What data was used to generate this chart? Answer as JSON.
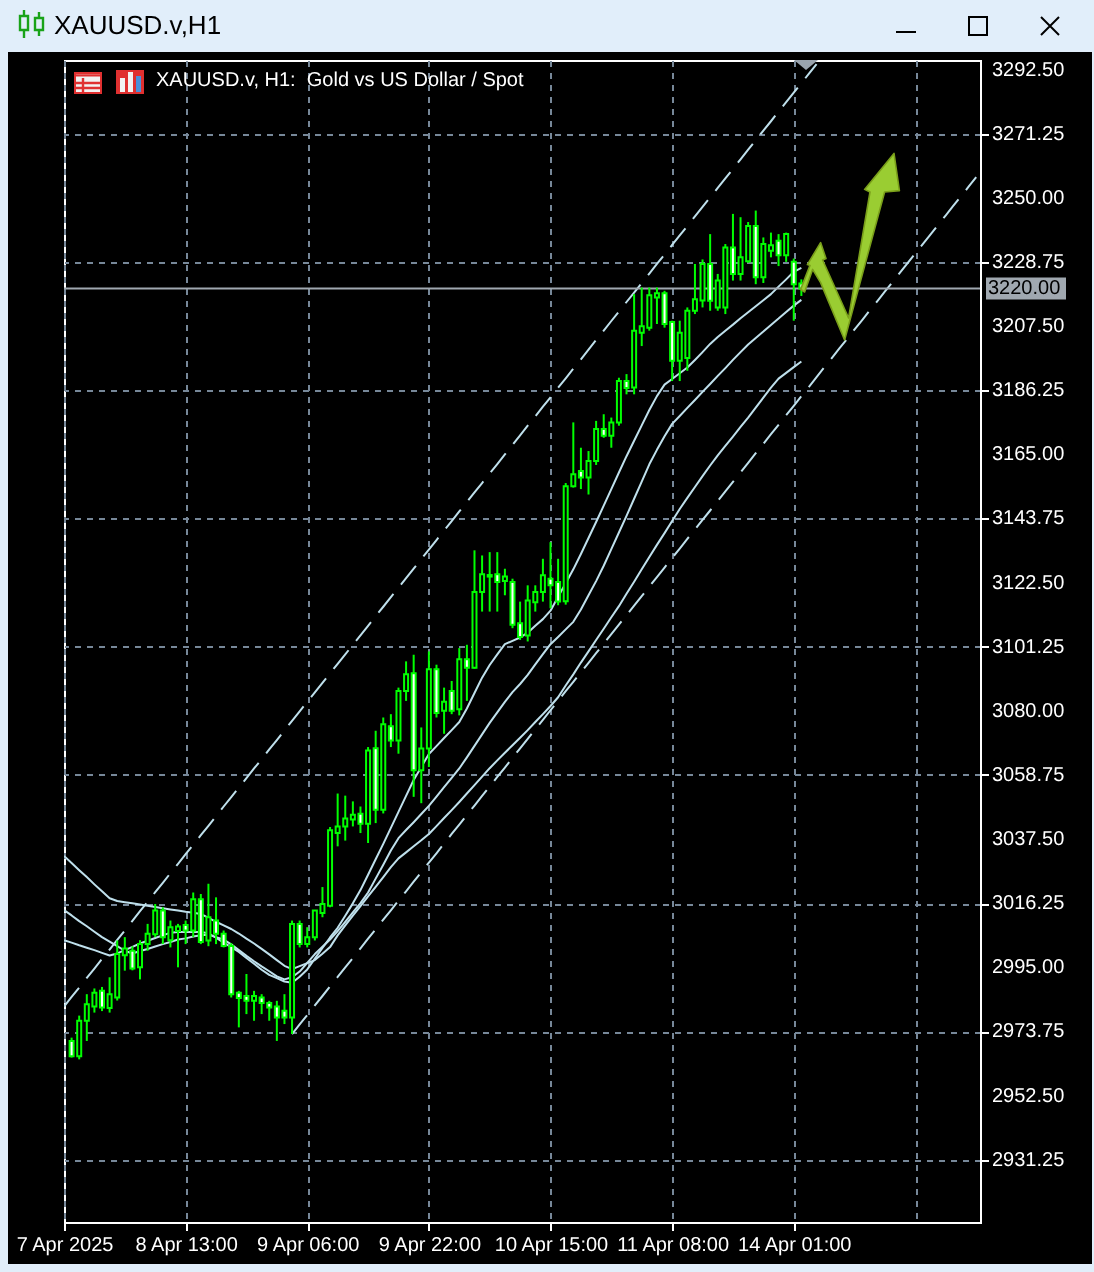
{
  "chart_data": {
    "type": "candlestick",
    "title": "XAUUSD.v,H1",
    "subtitle": "XAUUSD.v, H1:  Gold vs US Dollar / Spot",
    "categories": [
      "7 Apr 2025",
      null,
      null,
      null,
      null,
      null,
      null,
      null,
      null,
      null,
      null,
      null,
      null,
      null,
      null,
      null,
      "8 Apr 13:00",
      null,
      null,
      null,
      null,
      null,
      null,
      null,
      null,
      null,
      null,
      null,
      null,
      null,
      null,
      null,
      "9 Apr 06:00",
      null,
      null,
      null,
      null,
      null,
      null,
      null,
      null,
      null,
      null,
      null,
      null,
      null,
      null,
      null,
      "9 Apr 22:00",
      null,
      null,
      null,
      null,
      null,
      null,
      null,
      null,
      null,
      null,
      null,
      null,
      null,
      null,
      null,
      "10 Apr 15:00",
      null,
      null,
      null,
      null,
      null,
      null,
      null,
      null,
      null,
      null,
      null,
      null,
      null,
      null,
      null,
      "11 Apr 08:00",
      null,
      null,
      null,
      null,
      null,
      null,
      null,
      null,
      null,
      null,
      null,
      null,
      null,
      null,
      null,
      "14 Apr 01:00",
      null,
      null,
      null,
      null,
      null,
      null,
      null,
      null,
      null,
      null,
      null,
      null,
      null,
      null,
      null,
      null,
      null,
      null,
      null,
      null,
      null,
      null,
      null,
      null
    ],
    "ohlc": [
      null,
      [
        2970.6,
        2971.7,
        2965.1,
        2965.5
      ],
      [
        2965.5,
        2979.0,
        2964.5,
        2977.3
      ],
      [
        2977.3,
        2986.1,
        2970.6,
        2982.8
      ],
      [
        2982.0,
        2988.0,
        2980.0,
        2986.6
      ],
      [
        2987.2,
        2988.5,
        2980.5,
        2981.7
      ],
      [
        2981.5,
        2991.7,
        2980.0,
        2986.1
      ],
      [
        2985.0,
        3003.9,
        2984.0,
        2999.4
      ],
      [
        2999.0,
        3005.0,
        2993.9,
        3001.2
      ],
      [
        3000.5,
        3002.0,
        2994.0,
        2994.6
      ],
      [
        2995.0,
        3004.0,
        2991.0,
        3002.7
      ],
      [
        3002.7,
        3009.4,
        3000.5,
        3006.1
      ],
      [
        3006.0,
        3016.0,
        3005.0,
        3013.8
      ],
      [
        3013.8,
        3014.9,
        3002.7,
        3005.0
      ],
      [
        3004.0,
        3010.5,
        3001.6,
        3008.3
      ],
      [
        3007.0,
        3009.4,
        2995.0,
        3008.5
      ],
      [
        3009.0,
        3010.5,
        3002.7,
        3007.2
      ],
      [
        3007.2,
        3019.8,
        3005.0,
        3017.6
      ],
      [
        3017.6,
        3019.3,
        3002.7,
        3003.4
      ],
      [
        3003.9,
        3022.7,
        3002.0,
        3011.6
      ],
      [
        3010.5,
        3018.2,
        3002.7,
        3006.1
      ],
      [
        3006.1,
        3007.2,
        3001.6,
        3002.1
      ],
      [
        3002.1,
        3003.0,
        2985.0,
        2986.1
      ],
      [
        2986.6,
        2987.2,
        2975.1,
        2984.8
      ],
      [
        2985.5,
        2992.8,
        2979.5,
        2983.9
      ],
      [
        2983.9,
        2987.2,
        2977.3,
        2985.5
      ],
      [
        2985.0,
        2986.1,
        2979.5,
        2983.2
      ],
      [
        2983.2,
        2983.9,
        2977.3,
        2981.7
      ],
      [
        2982.0,
        2983.9,
        2970.6,
        2978.4
      ],
      [
        2980.6,
        2986.1,
        2976.2,
        2978.4
      ],
      [
        2978.4,
        3010.5,
        2972.9,
        3009.4
      ],
      [
        3009.4,
        3010.5,
        3001.6,
        3002.7
      ],
      [
        3002.7,
        3008.3,
        3001.6,
        3005.0
      ],
      [
        3005.0,
        3013.8,
        3003.9,
        3013.8
      ],
      [
        3013.0,
        3021.6,
        3011.6,
        3016.0
      ],
      [
        3015.4,
        3041.5,
        3014.9,
        3040.4
      ],
      [
        3039.5,
        3052.6,
        3035.1,
        3041.7
      ],
      [
        3041.7,
        3051.9,
        3037.0,
        3044.3
      ],
      [
        3044.0,
        3050.0,
        3041.7,
        3045.6
      ],
      [
        3045.9,
        3048.3,
        3039.5,
        3042.6
      ],
      [
        3042.6,
        3068.0,
        3036.2,
        3066.9
      ],
      [
        3067.6,
        3073.4,
        3042.8,
        3047.2
      ],
      [
        3047.2,
        3077.8,
        3046.0,
        3075.6
      ],
      [
        3074.9,
        3078.9,
        3068.0,
        3070.2
      ],
      [
        3070.2,
        3087.7,
        3065.8,
        3086.6
      ],
      [
        3086.6,
        3096.4,
        3083.3,
        3092.1
      ],
      [
        3092.5,
        3098.6,
        3051.5,
        3060.3
      ],
      [
        3060.3,
        3074.5,
        3049.4,
        3067.5
      ],
      [
        3067.5,
        3099.7,
        3061.4,
        3093.8
      ],
      [
        3093.8,
        3095.3,
        3077.8,
        3079.3
      ],
      [
        3080.0,
        3087.7,
        3072.4,
        3083.0
      ],
      [
        3086.6,
        3089.9,
        3078.9,
        3080.0
      ],
      [
        3080.5,
        3100.8,
        3078.5,
        3097.1
      ],
      [
        3097.1,
        3101.9,
        3083.3,
        3094.3
      ],
      [
        3094.3,
        3133.2,
        3094.0,
        3119.4
      ],
      [
        3119.4,
        3131.5,
        3112.9,
        3125.3
      ],
      [
        3125.0,
        3132.6,
        3112.9,
        3124.5
      ],
      [
        3125.3,
        3132.6,
        3112.9,
        3122.7
      ],
      [
        3123.0,
        3127.1,
        3118.3,
        3124.5
      ],
      [
        3122.7,
        3123.8,
        3107.4,
        3108.5
      ],
      [
        3109.0,
        3116.2,
        3103.5,
        3104.5
      ],
      [
        3105.0,
        3121.6,
        3103.0,
        3116.6
      ],
      [
        3116.0,
        3121.6,
        3112.9,
        3119.4
      ],
      [
        3119.4,
        3130.4,
        3116.2,
        3124.9
      ],
      [
        3123.8,
        3135.9,
        3114.0,
        3121.6
      ],
      [
        3122.7,
        3130.4,
        3115.0,
        3116.2
      ],
      [
        3116.3,
        3155.5,
        3115.2,
        3154.4
      ],
      [
        3154.4,
        3175.6,
        3154.0,
        3158.4
      ],
      [
        3159.5,
        3167.2,
        3153.5,
        3157.3
      ],
      [
        3157.3,
        3166.1,
        3151.7,
        3162.8
      ],
      [
        3162.8,
        3176.1,
        3161.5,
        3173.4
      ],
      [
        3173.4,
        3178.3,
        3170.5,
        3171.2
      ],
      [
        3171.2,
        3177.2,
        3167.2,
        3175.6
      ],
      [
        3175.6,
        3190.4,
        3174.5,
        3189.3
      ],
      [
        3189.3,
        3191.6,
        3184.9,
        3187.0
      ],
      [
        3187.2,
        3218.1,
        3184.9,
        3206.0
      ],
      [
        3205.3,
        3220.3,
        3200.9,
        3207.5
      ],
      [
        3207.0,
        3220.3,
        3206.0,
        3217.7
      ],
      [
        3217.0,
        3220.3,
        3208.2,
        3218.4
      ],
      [
        3218.4,
        3219.2,
        3207.0,
        3208.2
      ],
      [
        3208.9,
        3209.3,
        3189.3,
        3196.0
      ],
      [
        3196.0,
        3209.3,
        3189.3,
        3205.3
      ],
      [
        3196.9,
        3213.7,
        3192.7,
        3212.6
      ],
      [
        3212.6,
        3228.1,
        3211.5,
        3216.4
      ],
      [
        3216.0,
        3229.6,
        3213.7,
        3228.1
      ],
      [
        3228.1,
        3238.0,
        3212.6,
        3215.9
      ],
      [
        3213.7,
        3224.8,
        3212.6,
        3222.6
      ],
      [
        3213.7,
        3234.7,
        3211.5,
        3233.6
      ],
      [
        3233.6,
        3244.7,
        3222.6,
        3224.8
      ],
      [
        3224.8,
        3243.6,
        3222.6,
        3230.3
      ],
      [
        3229.0,
        3242.0,
        3228.5,
        3240.7
      ],
      [
        3240.7,
        3245.8,
        3221.4,
        3223.7
      ],
      [
        3223.7,
        3236.9,
        3221.8,
        3234.7
      ],
      [
        3232.5,
        3238.5,
        3230.3,
        3234.3
      ],
      [
        3235.8,
        3238.0,
        3227.4,
        3231.0
      ],
      [
        3231.0,
        3238.5,
        3228.8,
        3238.0
      ],
      [
        3228.8,
        3229.9,
        3209.3,
        3221.4
      ],
      [
        3221.6,
        3223.0,
        3217.5,
        3220.0
      ],
      null,
      null,
      null,
      null,
      null,
      null,
      null,
      null,
      null,
      null,
      null,
      null,
      null,
      null,
      null,
      null,
      null,
      null,
      null,
      null,
      null,
      null,
      null
    ],
    "series": [
      {
        "type": "line",
        "color": "#bfe0ec",
        "values": [
          3004.0,
          3003.2,
          3002.3,
          3001.5,
          3000.7,
          2999.8,
          2998.9,
          2999.6,
          3000.7,
          3001.8,
          3002.9,
          3003.8,
          3004.7,
          3005.6,
          3006.5,
          3006.7,
          3006.7,
          3006.7,
          3006.7,
          3006.3,
          3004.8,
          3003.2,
          3001.7,
          3000.1,
          2998.1,
          2996.2,
          2994.2,
          2992.5,
          2991.4,
          2990.3,
          2989.9,
          2991.9,
          2994.3,
          2997.9,
          3001.4,
          3004.9,
          3008.1,
          3012.1,
          3016.2,
          3020.6,
          3025.7,
          3030.8,
          3035.9,
          3041.2,
          3046.5,
          3051.8,
          3057.1,
          3061.4,
          3065.7,
          3068.3,
          3071.0,
          3073.6,
          3076.3,
          3080.8,
          3085.9,
          3091.0,
          3095.2,
          3098.7,
          3102.1,
          3103.2,
          3104.3,
          3105.9,
          3108.2,
          3110.4,
          3113.2,
          3117.8,
          3122.3,
          3126.9,
          3132.0,
          3137.3,
          3142.6,
          3148.0,
          3153.5,
          3159.0,
          3164.4,
          3169.5,
          3174.6,
          3179.7,
          3184.3,
          3188.1,
          3190.0,
          3191.9,
          3193.8,
          3196.3,
          3198.9,
          3201.6,
          3203.9,
          3206.0,
          3208.0,
          3210.1,
          3212.1,
          3214.1,
          3216.1,
          3218.1,
          3220.6,
          3223.0,
          3225.5,
          3226.8,
          null,
          null,
          null,
          null,
          null,
          null,
          null,
          null,
          null,
          null,
          null,
          null,
          null,
          null,
          null,
          null,
          null,
          null,
          null,
          null,
          null,
          null,
          null
        ]
      },
      {
        "type": "line",
        "color": "#bfe0ec",
        "values": [
          3014.0,
          3012.2,
          3010.3,
          3008.6,
          3006.8,
          3005.0,
          3003.5,
          3002.0,
          3000.5,
          2999.6,
          3000.4,
          3001.1,
          3001.9,
          3002.7,
          3003.4,
          3004.2,
          3004.6,
          3005.2,
          3005.6,
          3005.8,
          3005.0,
          3004.2,
          3002.6,
          3000.7,
          2998.8,
          2997.0,
          2995.3,
          2993.7,
          2992.0,
          2991.0,
          2991.7,
          2993.6,
          2996.5,
          2999.4,
          3001.8,
          3004.2,
          3007.0,
          3010.1,
          3013.2,
          3016.3,
          3019.8,
          3024.4,
          3029.0,
          3033.7,
          3037.8,
          3040.5,
          3043.1,
          3045.8,
          3048.5,
          3051.6,
          3054.7,
          3057.8,
          3060.9,
          3064.6,
          3068.4,
          3072.2,
          3076.0,
          3079.5,
          3083.0,
          3086.2,
          3088.9,
          3091.9,
          3095.4,
          3098.8,
          3102.1,
          3104.5,
          3107.0,
          3109.5,
          3113.6,
          3118.3,
          3123.0,
          3128.1,
          3133.6,
          3139.1,
          3144.6,
          3150.3,
          3156.0,
          3161.7,
          3166.5,
          3171.0,
          3175.1,
          3177.7,
          3180.4,
          3183.0,
          3185.7,
          3188.3,
          3191.0,
          3193.6,
          3196.3,
          3198.9,
          3201.4,
          3203.6,
          3205.7,
          3207.9,
          3210.0,
          3212.2,
          3214.3,
          3216.2,
          null,
          null,
          null,
          null,
          null,
          null,
          null,
          null,
          null,
          null,
          null,
          null,
          null,
          null,
          null,
          null,
          null,
          null,
          null,
          null,
          null,
          null,
          null
        ]
      },
      {
        "type": "line",
        "color": "#bfe0ec",
        "values": [
          3031.9,
          3029.6,
          3027.2,
          3024.9,
          3022.5,
          3020.2,
          3017.9,
          3017.0,
          3016.6,
          3016.2,
          3015.8,
          3015.4,
          3015.0,
          3014.6,
          3014.2,
          3013.8,
          3013.4,
          3013.1,
          3012.7,
          3011.4,
          3010.1,
          3008.9,
          3007.7,
          3006.2,
          3004.5,
          3002.9,
          3001.1,
          2999.3,
          2997.4,
          2995.5,
          2994.4,
          2995.4,
          2996.4,
          2997.4,
          2999.5,
          3001.7,
          3005.6,
          3008.9,
          3012.1,
          3015.3,
          3018.5,
          3021.7,
          3024.9,
          3028.2,
          3031.1,
          3033.1,
          3035.1,
          3037.1,
          3039.2,
          3041.8,
          3044.5,
          3047.1,
          3049.8,
          3052.6,
          3055.4,
          3058.2,
          3061.0,
          3063.6,
          3066.1,
          3068.6,
          3071.1,
          3073.6,
          3076.3,
          3078.9,
          3081.6,
          3084.5,
          3088.4,
          3092.1,
          3096.0,
          3099.7,
          3103.5,
          3107.2,
          3111.0,
          3114.7,
          3118.8,
          3122.8,
          3126.9,
          3131.0,
          3135.0,
          3138.9,
          3142.9,
          3146.9,
          3150.6,
          3154.2,
          3157.8,
          3161.3,
          3164.7,
          3167.8,
          3170.9,
          3174.1,
          3177.2,
          3180.5,
          3183.8,
          3187.1,
          3190.1,
          3192.0,
          3193.9,
          3195.8,
          null,
          null,
          null,
          null,
          null,
          null,
          null,
          null,
          null,
          null,
          null,
          null,
          null,
          null,
          null,
          null,
          null,
          null,
          null,
          null,
          null,
          null,
          null
        ]
      },
      {
        "type": "line",
        "color": "#bfe0ec",
        "line_style": "dashed",
        "values": [
          2982.0,
          2985.2,
          2988.3,
          2991.5,
          2994.6,
          2997.8,
          3000.9,
          3004.1,
          3007.2,
          3010.4,
          3013.6,
          3016.7,
          3019.9,
          3023.0,
          3026.2,
          3029.3,
          3032.5,
          3035.6,
          3038.8,
          3041.9,
          3045.1,
          3048.3,
          3051.4,
          3054.6,
          3057.7,
          3060.9,
          3064.0,
          3067.2,
          3070.3,
          3073.5,
          3076.7,
          3079.8,
          3083.0,
          3086.1,
          3089.3,
          3092.4,
          3095.6,
          3098.7,
          3101.9,
          3105.0,
          3108.2,
          3111.4,
          3114.5,
          3117.7,
          3120.8,
          3124.0,
          3127.1,
          3130.3,
          3133.4,
          3136.6,
          3139.8,
          3142.9,
          3146.1,
          3149.2,
          3152.4,
          3155.5,
          3158.7,
          3161.8,
          3165.0,
          3168.1,
          3171.3,
          3174.5,
          3177.6,
          3180.8,
          3183.9,
          3187.1,
          3190.2,
          3193.4,
          3196.5,
          3199.7,
          3202.9,
          3206.0,
          3209.2,
          3212.3,
          3215.5,
          3218.6,
          3221.8,
          3224.9,
          3228.1,
          3231.2,
          3234.4,
          3237.6,
          3240.7,
          3243.9,
          3247.0,
          3250.2,
          3253.3,
          3256.5,
          3259.6,
          3262.8,
          3266.0,
          3269.1,
          3272.3,
          3275.4,
          3278.6,
          3281.7,
          3284.9,
          3288.0,
          3291.2,
          3294.3,
          null,
          null,
          null,
          null,
          null,
          null,
          null,
          null,
          null,
          null,
          null,
          null,
          null,
          null,
          null,
          null,
          null,
          null,
          null,
          null,
          null
        ]
      },
      {
        "type": "line",
        "color": "#bfe0ec",
        "line_style": "dashed",
        "values": [
          null,
          null,
          null,
          null,
          null,
          null,
          null,
          null,
          null,
          null,
          null,
          null,
          null,
          null,
          null,
          null,
          null,
          null,
          null,
          null,
          null,
          null,
          null,
          null,
          null,
          null,
          null,
          null,
          null,
          null,
          2972.9,
          2976.1,
          2979.2,
          2982.4,
          2985.5,
          2988.7,
          2991.8,
          2995.0,
          2998.1,
          3001.3,
          3004.5,
          3007.6,
          3010.8,
          3013.9,
          3017.1,
          3020.2,
          3023.4,
          3026.5,
          3029.7,
          3032.8,
          3036.0,
          3039.2,
          3042.3,
          3045.5,
          3048.6,
          3051.8,
          3054.9,
          3058.1,
          3061.2,
          3064.4,
          3067.6,
          3070.7,
          3073.9,
          3077.0,
          3080.2,
          3083.3,
          3086.5,
          3089.6,
          3092.8,
          3095.9,
          3099.1,
          3102.3,
          3105.4,
          3108.6,
          3111.7,
          3114.9,
          3118.0,
          3121.2,
          3124.3,
          3127.5,
          3130.7,
          3133.8,
          3137.0,
          3140.1,
          3143.3,
          3146.4,
          3149.6,
          3152.7,
          3155.9,
          3159.0,
          3162.2,
          3165.4,
          3168.5,
          3171.7,
          3174.8,
          3178.0,
          3181.1,
          3184.3,
          3187.4,
          3190.6,
          3193.8,
          3196.9,
          3200.1,
          3203.2,
          3206.4,
          3209.5,
          3212.7,
          3215.8,
          3219.0,
          3222.1,
          3225.3,
          3228.5,
          3231.6,
          3234.8,
          3237.9,
          3241.1,
          3244.2,
          3247.4,
          3250.5,
          3253.7,
          3256.9
        ]
      }
    ],
    "ylim": [
      2910.6,
      3295.7
    ],
    "yticks": [
      {
        "value": 2931.25,
        "label": "2931.25"
      },
      {
        "value": 2952.5,
        "label": "2952.50"
      },
      {
        "value": 2973.75,
        "label": "2973.75"
      },
      {
        "value": 2995,
        "label": "2995.00"
      },
      {
        "value": 3016.25,
        "label": "3016.25"
      },
      {
        "value": 3037.5,
        "label": "3037.50"
      },
      {
        "value": 3058.75,
        "label": "3058.75"
      },
      {
        "value": 3080,
        "label": "3080.00"
      },
      {
        "value": 3101.25,
        "label": "3101.25"
      },
      {
        "value": 3122.5,
        "label": "3122.50"
      },
      {
        "value": 3143.75,
        "label": "3143.75"
      },
      {
        "value": 3165,
        "label": "3165.00"
      },
      {
        "value": 3186.25,
        "label": "3186.25"
      },
      {
        "value": 3207.5,
        "label": "3207.50"
      },
      {
        "value": 3228.75,
        "label": "3228.75"
      },
      {
        "value": 3250,
        "label": "3250.00"
      },
      {
        "value": 3271.25,
        "label": "3271.25"
      },
      {
        "value": 3292.5,
        "label": "3292.50"
      }
    ],
    "ref_lines": [
      {
        "axis": "y",
        "value": 3220,
        "label": "3220.00",
        "color": "#a0a8b0"
      }
    ],
    "grid": true
  }
}
